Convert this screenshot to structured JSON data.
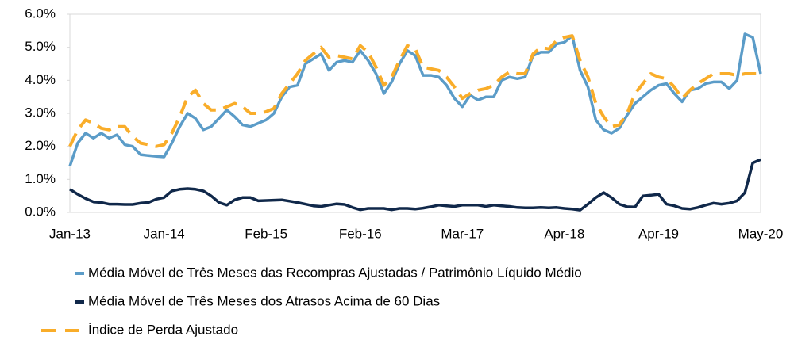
{
  "chart_data": {
    "type": "line",
    "categories": [
      "Jan-13",
      null,
      null,
      null,
      null,
      null,
      null,
      null,
      null,
      null,
      null,
      null,
      "Jan-14",
      null,
      null,
      null,
      null,
      null,
      null,
      null,
      null,
      null,
      null,
      null,
      null,
      "Feb-15",
      null,
      null,
      null,
      null,
      null,
      null,
      null,
      null,
      null,
      null,
      null,
      "Feb-16",
      null,
      null,
      null,
      null,
      null,
      null,
      null,
      null,
      null,
      null,
      null,
      null,
      "Mar-17",
      null,
      null,
      null,
      null,
      null,
      null,
      null,
      null,
      null,
      null,
      null,
      null,
      "Apr-18",
      null,
      null,
      null,
      null,
      null,
      null,
      null,
      null,
      null,
      null,
      null,
      "Apr-19",
      null,
      null,
      null,
      null,
      null,
      null,
      null,
      null,
      null,
      null,
      null,
      null,
      "May-20"
    ],
    "ylim": [
      0,
      6
    ],
    "yticks": [
      {
        "value": 0,
        "label": "0.0%"
      },
      {
        "value": 1,
        "label": "1.0%"
      },
      {
        "value": 2,
        "label": "2.0%"
      },
      {
        "value": 3,
        "label": "3.0%"
      },
      {
        "value": 4,
        "label": "4.0%"
      },
      {
        "value": 5,
        "label": "5.0%"
      },
      {
        "value": 6,
        "label": "6.0%"
      }
    ],
    "series": [
      {
        "name": "Média Móvel de Três Meses das Recompras Ajustadas / Patrimônio Líquido Médio",
        "color": "#5b9cc8",
        "dashed": false,
        "values": [
          1.4,
          2.1,
          2.4,
          2.25,
          2.4,
          2.25,
          2.35,
          2.05,
          2.0,
          1.75,
          1.72,
          1.7,
          1.68,
          2.1,
          2.6,
          3.0,
          2.85,
          2.5,
          2.6,
          2.85,
          3.1,
          2.9,
          2.65,
          2.6,
          2.7,
          2.8,
          3.0,
          3.5,
          3.8,
          3.85,
          4.5,
          4.65,
          4.8,
          4.3,
          4.55,
          4.6,
          4.55,
          4.9,
          4.6,
          4.2,
          3.6,
          3.95,
          4.5,
          4.9,
          4.75,
          4.15,
          4.15,
          4.1,
          3.85,
          3.45,
          3.2,
          3.55,
          3.4,
          3.5,
          3.5,
          4.0,
          4.1,
          4.05,
          4.1,
          4.75,
          4.85,
          4.85,
          5.1,
          5.15,
          5.35,
          4.3,
          3.8,
          2.8,
          2.5,
          2.4,
          2.55,
          2.95,
          3.3,
          3.5,
          3.7,
          3.85,
          3.9,
          3.6,
          3.35,
          3.7,
          3.75,
          3.9,
          3.95,
          3.95,
          3.75,
          4.0,
          5.4,
          5.3,
          4.2
        ]
      },
      {
        "name": "Média Móvel de Três Meses dos Atrasos Acima de 60 Dias",
        "color": "#10284a",
        "dashed": false,
        "values": [
          0.7,
          0.55,
          0.42,
          0.32,
          0.3,
          0.25,
          0.25,
          0.24,
          0.24,
          0.28,
          0.3,
          0.4,
          0.45,
          0.65,
          0.7,
          0.72,
          0.7,
          0.65,
          0.5,
          0.3,
          0.22,
          0.38,
          0.45,
          0.45,
          0.35,
          0.36,
          0.37,
          0.38,
          0.34,
          0.3,
          0.25,
          0.2,
          0.18,
          0.22,
          0.26,
          0.24,
          0.15,
          0.08,
          0.12,
          0.12,
          0.12,
          0.08,
          0.12,
          0.12,
          0.1,
          0.13,
          0.17,
          0.22,
          0.2,
          0.18,
          0.22,
          0.22,
          0.22,
          0.18,
          0.22,
          0.2,
          0.18,
          0.15,
          0.14,
          0.14,
          0.15,
          0.14,
          0.15,
          0.12,
          0.1,
          0.07,
          0.25,
          0.45,
          0.6,
          0.45,
          0.25,
          0.17,
          0.16,
          0.5,
          0.52,
          0.55,
          0.25,
          0.2,
          0.12,
          0.1,
          0.15,
          0.22,
          0.28,
          0.25,
          0.28,
          0.35,
          0.6,
          1.5,
          1.6
        ]
      },
      {
        "name": "Índice de Perda Ajustado",
        "color": "#f9ad2a",
        "dashed": true,
        "values": [
          2.0,
          2.5,
          2.8,
          2.7,
          2.55,
          2.5,
          2.6,
          2.6,
          2.3,
          2.1,
          2.05,
          2.0,
          2.05,
          2.4,
          2.9,
          3.5,
          3.7,
          3.3,
          3.1,
          3.1,
          3.2,
          3.3,
          3.2,
          3.0,
          3.0,
          3.05,
          3.15,
          3.6,
          3.9,
          4.2,
          4.6,
          4.8,
          5.0,
          4.7,
          4.75,
          4.7,
          4.65,
          5.05,
          4.85,
          4.4,
          3.85,
          4.1,
          4.6,
          5.05,
          4.95,
          4.4,
          4.35,
          4.3,
          4.1,
          3.8,
          3.45,
          3.6,
          3.7,
          3.75,
          3.85,
          4.1,
          4.25,
          4.2,
          4.2,
          4.8,
          5.0,
          4.95,
          5.2,
          5.3,
          5.35,
          4.6,
          4.1,
          3.3,
          2.9,
          2.6,
          2.65,
          3.0,
          3.6,
          3.9,
          4.2,
          4.1,
          4.05,
          3.8,
          3.45,
          3.7,
          3.9,
          4.05,
          4.2,
          4.2,
          4.2,
          4.15,
          4.2,
          4.2,
          4.2
        ]
      }
    ]
  }
}
